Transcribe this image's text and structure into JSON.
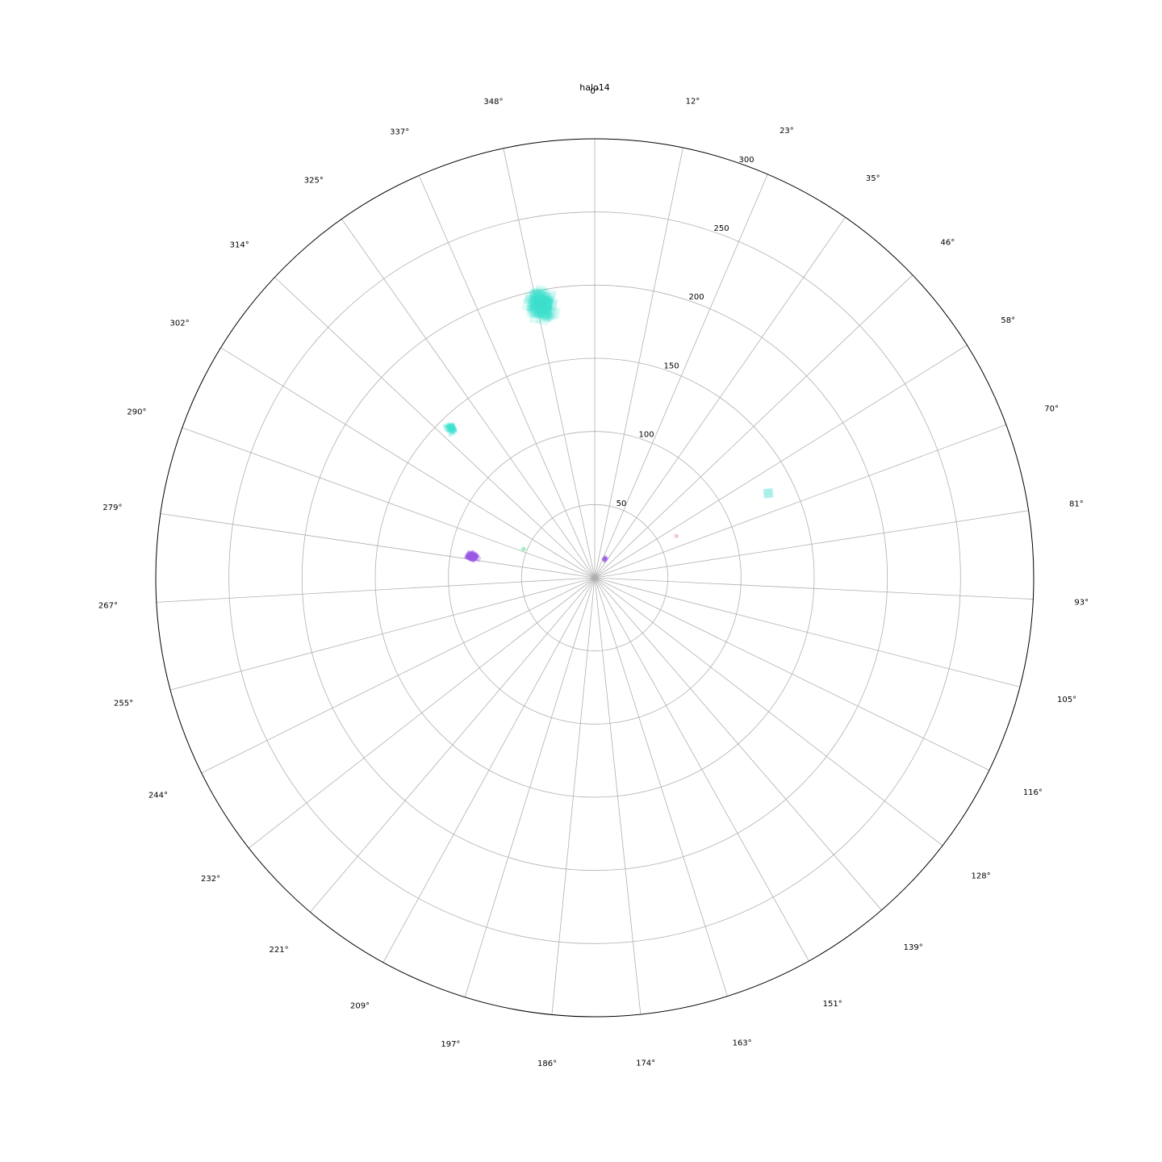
{
  "chart_data": {
    "type": "scatter",
    "projection": "polar",
    "title": "halo14",
    "theta_zero": "top",
    "theta_direction": "clockwise",
    "r_max": 300,
    "grid": true,
    "theta_ticks_deg": [
      0,
      11.6,
      23.2,
      34.8,
      46.4,
      58.0,
      69.6,
      81.2,
      92.8,
      104.4,
      116.0,
      127.6,
      139.2,
      150.8,
      162.4,
      174.0,
      185.6,
      197.2,
      208.8,
      220.4,
      232.0,
      243.6,
      255.2,
      266.8,
      278.4,
      290.0,
      301.6,
      313.2,
      324.8,
      336.4,
      348.0
    ],
    "theta_tick_labels": [
      "0°",
      "12°",
      "23°",
      "35°",
      "46°",
      "58°",
      "70°",
      "81°",
      "93°",
      "105°",
      "116°",
      "128°",
      "139°",
      "151°",
      "163°",
      "174°",
      "186°",
      "197°",
      "209°",
      "221°",
      "232°",
      "244°",
      "255°",
      "267°",
      "279°",
      "290°",
      "302°",
      "314°",
      "325°",
      "337°",
      "348°"
    ],
    "r_ticks": [
      50,
      100,
      150,
      200,
      250,
      300
    ],
    "r_tick_labels": [
      "50",
      "100",
      "150",
      "200",
      "250",
      "300"
    ],
    "r_label_angle_deg": 20,
    "series": [
      {
        "color": "#40e0d0",
        "clusters": [
          {
            "theta": 349,
            "r": 190,
            "spread_theta": 3.0,
            "spread_r": 12,
            "n": 140,
            "size": 12,
            "alpha": 0.16
          },
          {
            "theta": 316,
            "r": 142,
            "spread_theta": 1.2,
            "spread_r": 4,
            "n": 18,
            "size": 8,
            "alpha": 0.3
          },
          {
            "theta": 64,
            "r": 132,
            "spread_theta": 0.3,
            "spread_r": 1,
            "n": 3,
            "size": 9,
            "alpha": 0.18
          }
        ]
      },
      {
        "color": "#9b59e6",
        "clusters": [
          {
            "theta": 280,
            "r": 85,
            "spread_theta": 1.4,
            "spread_r": 5,
            "n": 55,
            "size": 7,
            "alpha": 0.3
          },
          {
            "theta": 28,
            "r": 15,
            "spread_theta": 4,
            "spread_r": 2,
            "n": 12,
            "size": 5,
            "alpha": 0.28
          }
        ]
      },
      {
        "color": "#6ee8a0",
        "clusters": [
          {
            "theta": 292,
            "r": 52,
            "spread_theta": 0.5,
            "spread_r": 1,
            "n": 4,
            "size": 5,
            "alpha": 0.25
          }
        ]
      },
      {
        "color": "#e8a0c0",
        "clusters": [
          {
            "theta": 63,
            "r": 63,
            "spread_theta": 0.4,
            "spread_r": 1,
            "n": 3,
            "size": 4,
            "alpha": 0.3
          }
        ]
      }
    ]
  }
}
